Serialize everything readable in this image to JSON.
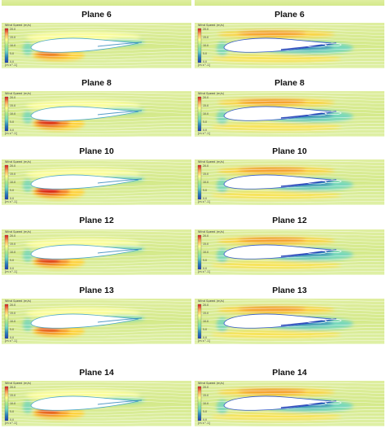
{
  "legend": {
    "title": "Wind Speed (m/s)",
    "unit": "[m s^-1]",
    "ticks": [
      "20.0",
      "15.0",
      "10.0",
      "5.0",
      "0.0"
    ],
    "colors": [
      "#d7191c",
      "#fdae61",
      "#ffff8c",
      "#a6e88a",
      "#6fd6c0",
      "#2b83ba",
      "#1f3fb5"
    ]
  },
  "panels": [
    {
      "column": "left",
      "plane": "Plane 6"
    },
    {
      "column": "left",
      "plane": "Plane 8"
    },
    {
      "column": "left",
      "plane": "Plane 10"
    },
    {
      "column": "left",
      "plane": "Plane 12"
    },
    {
      "column": "left",
      "plane": "Plane 13"
    },
    {
      "column": "left",
      "plane": "Plane 14"
    },
    {
      "column": "right",
      "plane": "Plane 6"
    },
    {
      "column": "right",
      "plane": "Plane 8"
    },
    {
      "column": "right",
      "plane": "Plane 10"
    },
    {
      "column": "right",
      "plane": "Plane 12"
    },
    {
      "column": "right",
      "plane": "Plane 13"
    },
    {
      "column": "right",
      "plane": "Plane 14"
    }
  ]
}
